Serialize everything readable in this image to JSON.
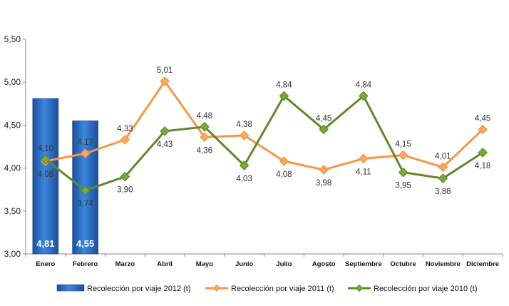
{
  "chart_data": {
    "type": "bar+line",
    "categories": [
      "Enero",
      "Febrero",
      "Marzo",
      "Abril",
      "Mayo",
      "Junio",
      "Julio",
      "Agosto",
      "Septiembre",
      "Octubre",
      "Noviembre",
      "Diciembre"
    ],
    "ylim": [
      3.0,
      5.5
    ],
    "yticks": [
      "3,00",
      "3,50",
      "4,00",
      "4,50",
      "5,00",
      "5,50"
    ],
    "grid": false,
    "legend_position": "bottom",
    "series": [
      {
        "name": "Recolección por viaje 2012 (t)",
        "kind": "bar",
        "color": "#2e6fc4",
        "values": [
          4.81,
          4.55,
          null,
          null,
          null,
          null,
          null,
          null,
          null,
          null,
          null,
          null
        ],
        "labels": [
          "4,81",
          "4,55",
          "",
          "",
          "",
          "",
          "",
          "",
          "",
          "",
          "",
          ""
        ]
      },
      {
        "name": "Recolección por viaje 2011 (t)",
        "kind": "line",
        "color": "#f79646",
        "marker_color": "#f4a95c",
        "values": [
          4.08,
          4.17,
          4.33,
          5.01,
          4.36,
          4.38,
          4.08,
          3.98,
          4.11,
          4.15,
          4.01,
          4.45
        ],
        "labels": [
          "4,08",
          "4,17",
          "4,33",
          "5,01",
          "4,36",
          "4,38",
          "4,08",
          "3,98",
          "4,11",
          "4,15",
          "4,01",
          "4,45"
        ]
      },
      {
        "name": "Recolección por viaje 2010 (t)",
        "kind": "line",
        "color": "#5f8a2a",
        "marker_color": "#7aa83a",
        "values": [
          4.1,
          3.74,
          3.9,
          4.43,
          4.48,
          4.03,
          4.84,
          4.45,
          4.84,
          3.95,
          3.88,
          4.18
        ],
        "labels": [
          "4,10",
          "3,74",
          "3,90",
          "4,43",
          "4,48",
          "4,03",
          "4,84",
          "4,45",
          "4,84",
          "3,95",
          "3,88",
          "4,18"
        ]
      }
    ]
  }
}
